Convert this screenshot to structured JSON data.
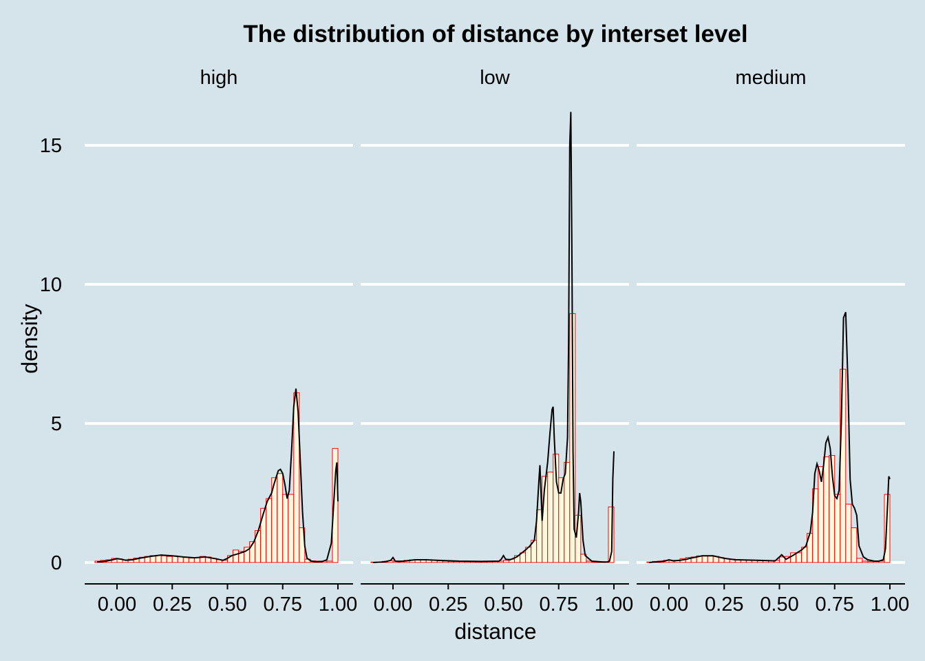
{
  "chart_data": {
    "type": "histogram",
    "title": "The distribution of distance by interset level",
    "xlabel": "distance",
    "ylabel": "density",
    "xlim": [
      -0.14,
      1.07
    ],
    "ylim": [
      -0.8,
      16.3
    ],
    "x_ticks": [
      0,
      0.25,
      0.5,
      0.75,
      1
    ],
    "x_tick_labels": [
      "0.00",
      "0.25",
      "0.50",
      "0.75",
      "1.00"
    ],
    "y_ticks": [
      0,
      5,
      10,
      15
    ],
    "y_tick_labels": [
      "0",
      "5",
      "10",
      "15"
    ],
    "grid": "horizontal major only",
    "bar_fill": "#fff8dc",
    "bar_outline": "#ff0000",
    "density_line_color": "#000000",
    "background": "#d5e4eb",
    "bin_width": 0.025,
    "panels": [
      {
        "label": "high",
        "bins": [
          {
            "x": -0.0875,
            "density": 0.05
          },
          {
            "x": -0.0625,
            "density": 0.08
          },
          {
            "x": -0.0375,
            "density": 0.1
          },
          {
            "x": -0.0125,
            "density": 0.15
          },
          {
            "x": 0.0125,
            "density": 0.13
          },
          {
            "x": 0.0375,
            "density": 0.1
          },
          {
            "x": 0.0625,
            "density": 0.12
          },
          {
            "x": 0.0875,
            "density": 0.16
          },
          {
            "x": 0.1125,
            "density": 0.19
          },
          {
            "x": 0.1375,
            "density": 0.22
          },
          {
            "x": 0.1625,
            "density": 0.25
          },
          {
            "x": 0.1875,
            "density": 0.26
          },
          {
            "x": 0.2125,
            "density": 0.24
          },
          {
            "x": 0.2375,
            "density": 0.22
          },
          {
            "x": 0.2625,
            "density": 0.24
          },
          {
            "x": 0.2875,
            "density": 0.21
          },
          {
            "x": 0.3125,
            "density": 0.18
          },
          {
            "x": 0.3375,
            "density": 0.16
          },
          {
            "x": 0.3625,
            "density": 0.17
          },
          {
            "x": 0.3875,
            "density": 0.22
          },
          {
            "x": 0.4125,
            "density": 0.2
          },
          {
            "x": 0.4375,
            "density": 0.15
          },
          {
            "x": 0.4625,
            "density": 0.1
          },
          {
            "x": 0.4875,
            "density": 0.08
          },
          {
            "x": 0.5125,
            "density": 0.25
          },
          {
            "x": 0.5375,
            "density": 0.45
          },
          {
            "x": 0.5625,
            "density": 0.4
          },
          {
            "x": 0.5875,
            "density": 0.55
          },
          {
            "x": 0.6125,
            "density": 0.75
          },
          {
            "x": 0.6375,
            "density": 1.15
          },
          {
            "x": 0.6625,
            "density": 1.95
          },
          {
            "x": 0.6875,
            "density": 2.3
          },
          {
            "x": 0.7125,
            "density": 3.05
          },
          {
            "x": 0.7375,
            "density": 3.2
          },
          {
            "x": 0.7625,
            "density": 2.45
          },
          {
            "x": 0.7875,
            "density": 2.45
          },
          {
            "x": 0.8125,
            "density": 6.1
          },
          {
            "x": 0.8375,
            "density": 1.25
          },
          {
            "x": 0.8625,
            "density": 0.12
          },
          {
            "x": 0.8875,
            "density": 0.06
          },
          {
            "x": 0.9125,
            "density": 0.05
          },
          {
            "x": 0.9375,
            "density": 0.05
          },
          {
            "x": 0.9625,
            "density": 0.05
          },
          {
            "x": 0.9875,
            "density": 4.1
          }
        ],
        "density_curve": {
          "x": [
            -0.09,
            -0.05,
            -0.02,
            0.0,
            0.02,
            0.04,
            0.07,
            0.1,
            0.15,
            0.2,
            0.25,
            0.3,
            0.35,
            0.4,
            0.45,
            0.48,
            0.5,
            0.52,
            0.55,
            0.58,
            0.6,
            0.62,
            0.64,
            0.66,
            0.68,
            0.7,
            0.71,
            0.73,
            0.74,
            0.75,
            0.76,
            0.77,
            0.78,
            0.79,
            0.8,
            0.81,
            0.82,
            0.83,
            0.84,
            0.85,
            0.86,
            0.88,
            0.9,
            0.93,
            0.95,
            0.97,
            0.98,
            0.99,
            0.995,
            1.0
          ],
          "y": [
            0.02,
            0.05,
            0.1,
            0.14,
            0.12,
            0.08,
            0.1,
            0.15,
            0.22,
            0.27,
            0.24,
            0.2,
            0.17,
            0.2,
            0.13,
            0.08,
            0.15,
            0.25,
            0.32,
            0.4,
            0.5,
            0.75,
            1.15,
            1.7,
            2.2,
            2.5,
            2.8,
            3.3,
            3.35,
            3.2,
            2.8,
            2.3,
            2.6,
            4.0,
            5.6,
            6.25,
            5.4,
            3.6,
            1.8,
            0.6,
            0.15,
            0.05,
            0.03,
            0.04,
            0.1,
            0.7,
            2.0,
            3.3,
            3.6,
            2.2
          ]
        }
      },
      {
        "label": "low",
        "bins": [
          {
            "x": -0.0875,
            "density": 0.02
          },
          {
            "x": -0.0625,
            "density": 0.02
          },
          {
            "x": -0.0375,
            "density": 0.04
          },
          {
            "x": -0.0125,
            "density": 0.06
          },
          {
            "x": 0.0125,
            "density": 0.05
          },
          {
            "x": 0.0375,
            "density": 0.06
          },
          {
            "x": 0.0625,
            "density": 0.08
          },
          {
            "x": 0.0875,
            "density": 0.1
          },
          {
            "x": 0.1125,
            "density": 0.11
          },
          {
            "x": 0.1375,
            "density": 0.1
          },
          {
            "x": 0.1625,
            "density": 0.09
          },
          {
            "x": 0.1875,
            "density": 0.08
          },
          {
            "x": 0.2125,
            "density": 0.06
          },
          {
            "x": 0.2375,
            "density": 0.05
          },
          {
            "x": 0.2625,
            "density": 0.04
          },
          {
            "x": 0.2875,
            "density": 0.04
          },
          {
            "x": 0.3125,
            "density": 0.04
          },
          {
            "x": 0.3375,
            "density": 0.04
          },
          {
            "x": 0.3625,
            "density": 0.04
          },
          {
            "x": 0.3875,
            "density": 0.04
          },
          {
            "x": 0.4125,
            "density": 0.04
          },
          {
            "x": 0.4375,
            "density": 0.04
          },
          {
            "x": 0.4625,
            "density": 0.05
          },
          {
            "x": 0.4875,
            "density": 0.05
          },
          {
            "x": 0.5125,
            "density": 0.08
          },
          {
            "x": 0.5375,
            "density": 0.12
          },
          {
            "x": 0.5625,
            "density": 0.25
          },
          {
            "x": 0.5875,
            "density": 0.35
          },
          {
            "x": 0.6125,
            "density": 0.55
          },
          {
            "x": 0.6375,
            "density": 0.8
          },
          {
            "x": 0.6625,
            "density": 1.9
          },
          {
            "x": 0.6875,
            "density": 3.1
          },
          {
            "x": 0.7125,
            "density": 3.25
          },
          {
            "x": 0.7375,
            "density": 3.9
          },
          {
            "x": 0.7625,
            "density": 3.05
          },
          {
            "x": 0.7875,
            "density": 3.6
          },
          {
            "x": 0.8125,
            "density": 8.95
          },
          {
            "x": 0.8375,
            "density": 1.7
          },
          {
            "x": 0.8625,
            "density": 0.3
          },
          {
            "x": 0.8875,
            "density": 0.05
          },
          {
            "x": 0.9125,
            "density": 0.03
          },
          {
            "x": 0.9375,
            "density": 0.03
          },
          {
            "x": 0.9625,
            "density": 0.03
          },
          {
            "x": 0.9875,
            "density": 2.0
          }
        ],
        "density_curve": {
          "x": [
            -0.09,
            -0.05,
            -0.03,
            -0.01,
            0.0,
            0.005,
            0.01,
            0.03,
            0.06,
            0.1,
            0.15,
            0.2,
            0.3,
            0.4,
            0.48,
            0.49,
            0.5,
            0.51,
            0.53,
            0.56,
            0.6,
            0.62,
            0.64,
            0.65,
            0.66,
            0.665,
            0.675,
            0.685,
            0.7,
            0.71,
            0.72,
            0.725,
            0.73,
            0.74,
            0.75,
            0.76,
            0.77,
            0.78,
            0.79,
            0.795,
            0.8,
            0.805,
            0.81,
            0.815,
            0.82,
            0.83,
            0.84,
            0.845,
            0.85,
            0.86,
            0.87,
            0.9,
            0.95,
            0.97,
            0.98,
            0.99,
            0.995,
            1.0
          ],
          "y": [
            0.0,
            0.02,
            0.04,
            0.08,
            0.18,
            0.12,
            0.05,
            0.04,
            0.06,
            0.1,
            0.1,
            0.08,
            0.05,
            0.04,
            0.05,
            0.12,
            0.25,
            0.12,
            0.1,
            0.2,
            0.45,
            0.6,
            0.8,
            1.5,
            2.9,
            3.5,
            1.5,
            2.6,
            3.6,
            4.6,
            5.5,
            5.6,
            4.5,
            2.9,
            2.5,
            2.5,
            3.0,
            3.2,
            4.5,
            8.0,
            15.0,
            16.2,
            11.0,
            4.0,
            1.2,
            0.9,
            1.8,
            2.5,
            2.2,
            0.8,
            0.25,
            0.05,
            0.02,
            0.02,
            0.05,
            0.4,
            3.0,
            4.0
          ]
        }
      },
      {
        "label": "medium",
        "bins": [
          {
            "x": -0.0875,
            "density": 0.02
          },
          {
            "x": -0.0625,
            "density": 0.04
          },
          {
            "x": -0.0375,
            "density": 0.05
          },
          {
            "x": -0.0125,
            "density": 0.08
          },
          {
            "x": 0.0125,
            "density": 0.08
          },
          {
            "x": 0.0375,
            "density": 0.08
          },
          {
            "x": 0.0625,
            "density": 0.14
          },
          {
            "x": 0.0875,
            "density": 0.18
          },
          {
            "x": 0.1125,
            "density": 0.2
          },
          {
            "x": 0.1375,
            "density": 0.24
          },
          {
            "x": 0.1625,
            "density": 0.25
          },
          {
            "x": 0.1875,
            "density": 0.25
          },
          {
            "x": 0.2125,
            "density": 0.22
          },
          {
            "x": 0.2375,
            "density": 0.18
          },
          {
            "x": 0.2625,
            "density": 0.14
          },
          {
            "x": 0.2875,
            "density": 0.12
          },
          {
            "x": 0.3125,
            "density": 0.11
          },
          {
            "x": 0.3375,
            "density": 0.1
          },
          {
            "x": 0.3625,
            "density": 0.09
          },
          {
            "x": 0.3875,
            "density": 0.08
          },
          {
            "x": 0.4125,
            "density": 0.07
          },
          {
            "x": 0.4375,
            "density": 0.07
          },
          {
            "x": 0.4625,
            "density": 0.06
          },
          {
            "x": 0.4875,
            "density": 0.08
          },
          {
            "x": 0.5125,
            "density": 0.2
          },
          {
            "x": 0.5375,
            "density": 0.22
          },
          {
            "x": 0.5625,
            "density": 0.35
          },
          {
            "x": 0.5875,
            "density": 0.35
          },
          {
            "x": 0.6125,
            "density": 0.55
          },
          {
            "x": 0.6375,
            "density": 1.05
          },
          {
            "x": 0.6625,
            "density": 2.65
          },
          {
            "x": 0.6875,
            "density": 3.45
          },
          {
            "x": 0.7125,
            "density": 3.8
          },
          {
            "x": 0.7375,
            "density": 3.85
          },
          {
            "x": 0.7625,
            "density": 2.45
          },
          {
            "x": 0.7875,
            "density": 6.95
          },
          {
            "x": 0.8125,
            "density": 2.1
          },
          {
            "x": 0.8375,
            "density": 1.25
          },
          {
            "x": 0.8625,
            "density": 0.15
          },
          {
            "x": 0.8875,
            "density": 0.05
          },
          {
            "x": 0.9125,
            "density": 0.04
          },
          {
            "x": 0.9375,
            "density": 0.04
          },
          {
            "x": 0.9625,
            "density": 0.05
          },
          {
            "x": 0.9875,
            "density": 2.45
          }
        ],
        "density_curve": {
          "x": [
            -0.09,
            -0.05,
            -0.02,
            0.0,
            0.02,
            0.05,
            0.08,
            0.1,
            0.15,
            0.2,
            0.25,
            0.3,
            0.35,
            0.4,
            0.45,
            0.48,
            0.5,
            0.51,
            0.53,
            0.56,
            0.6,
            0.62,
            0.64,
            0.65,
            0.66,
            0.67,
            0.68,
            0.69,
            0.7,
            0.71,
            0.72,
            0.73,
            0.74,
            0.75,
            0.76,
            0.77,
            0.78,
            0.79,
            0.8,
            0.81,
            0.82,
            0.83,
            0.84,
            0.85,
            0.86,
            0.88,
            0.9,
            0.93,
            0.95,
            0.97,
            0.98,
            0.99,
            0.995,
            1.0
          ],
          "y": [
            0.0,
            0.03,
            0.05,
            0.1,
            0.06,
            0.08,
            0.12,
            0.16,
            0.24,
            0.24,
            0.15,
            0.1,
            0.09,
            0.08,
            0.07,
            0.06,
            0.2,
            0.28,
            0.12,
            0.25,
            0.45,
            0.6,
            1.1,
            1.8,
            3.2,
            3.55,
            3.3,
            2.9,
            3.5,
            4.3,
            4.5,
            4.1,
            3.1,
            2.4,
            2.3,
            2.6,
            5.0,
            8.8,
            9.0,
            6.5,
            3.0,
            2.1,
            1.95,
            1.7,
            0.6,
            0.2,
            0.1,
            0.05,
            0.05,
            0.1,
            0.5,
            2.2,
            3.1,
            3.0
          ]
        }
      }
    ]
  }
}
